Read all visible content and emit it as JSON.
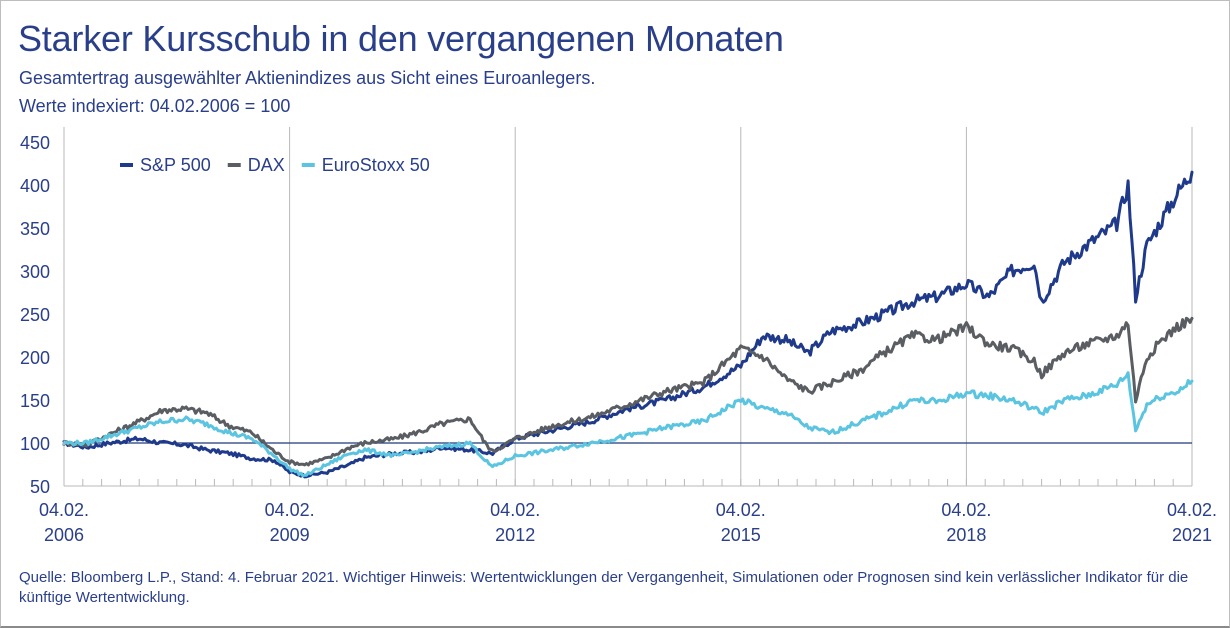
{
  "header": {
    "title": "Starker Kursschub in den vergangenen Monaten",
    "subtitle": "Gesamtertrag ausgewählter Aktienindizes aus Sicht eines Euroanlegers.",
    "note": "Werte indexiert: 04.02.2006 = 100"
  },
  "footer": {
    "source": "Quelle: Bloomberg L.P., Stand: 4. Februar 2021. Wichtiger Hinweis: Wertentwicklungen der Vergangenheit, Simulationen oder Prognosen sind kein verlässlicher Indikator für die künftige Wertentwicklung."
  },
  "colors": {
    "text": "#2a3f8a",
    "grid": "#b8b8b8",
    "baseline": "#1f3a7a"
  },
  "chart_data": {
    "type": "line",
    "title": "Starker Kursschub in den vergangenen Monaten",
    "subtitle": "Gesamtertrag ausgewählter Aktienindizes aus Sicht eines Euroanlegers.",
    "xlabel": "",
    "ylabel": "",
    "x_ticks": [
      {
        "x": 2006.0,
        "line1": "04.02.",
        "line2": "2006"
      },
      {
        "x": 2009.0,
        "line1": "04.02.",
        "line2": "2009"
      },
      {
        "x": 2012.0,
        "line1": "04.02.",
        "line2": "2012"
      },
      {
        "x": 2015.0,
        "line1": "04.02.",
        "line2": "2015"
      },
      {
        "x": 2018.0,
        "line1": "04.02.",
        "line2": "2018"
      },
      {
        "x": 2021.0,
        "line1": "04.02.",
        "line2": "2021"
      }
    ],
    "xlim": [
      2006.0,
      2021.0
    ],
    "ylim": [
      50,
      450
    ],
    "y_ticks": [
      50,
      100,
      150,
      200,
      250,
      300,
      350,
      400,
      450
    ],
    "grid": "vertical at year ticks",
    "reference_line": 100,
    "legend_position": "top-left",
    "series": [
      {
        "name": "S&P 500",
        "color": "#1f3a8a",
        "x": [
          2006.0,
          2006.3,
          2006.6,
          2007.0,
          2007.3,
          2007.6,
          2007.9,
          2008.2,
          2008.5,
          2008.8,
          2009.0,
          2009.2,
          2009.5,
          2009.8,
          2010.0,
          2010.4,
          2010.8,
          2011.0,
          2011.4,
          2011.7,
          2012.0,
          2012.5,
          2013.0,
          2013.5,
          2014.0,
          2014.5,
          2015.0,
          2015.3,
          2015.6,
          2015.9,
          2016.2,
          2016.6,
          2016.9,
          2017.3,
          2017.6,
          2018.0,
          2018.3,
          2018.6,
          2018.9,
          2019.0,
          2019.3,
          2019.6,
          2020.0,
          2020.15,
          2020.25,
          2020.4,
          2020.6,
          2020.8,
          2021.0
        ],
        "values": [
          100,
          95,
          100,
          105,
          100,
          98,
          92,
          88,
          82,
          80,
          66,
          62,
          66,
          75,
          83,
          88,
          90,
          95,
          92,
          88,
          105,
          115,
          125,
          140,
          150,
          165,
          190,
          225,
          220,
          205,
          230,
          240,
          250,
          265,
          270,
          285,
          270,
          300,
          310,
          265,
          310,
          330,
          355,
          400,
          270,
          330,
          360,
          390,
          415
        ]
      },
      {
        "name": "DAX",
        "color": "#5a5e63",
        "x": [
          2006.0,
          2006.3,
          2006.6,
          2007.0,
          2007.3,
          2007.6,
          2007.9,
          2008.2,
          2008.5,
          2008.8,
          2009.0,
          2009.2,
          2009.5,
          2009.8,
          2010.0,
          2010.4,
          2010.8,
          2011.0,
          2011.4,
          2011.6,
          2011.7,
          2012.0,
          2012.5,
          2013.0,
          2013.5,
          2014.0,
          2014.5,
          2015.0,
          2015.3,
          2015.6,
          2015.9,
          2016.2,
          2016.6,
          2016.9,
          2017.3,
          2017.6,
          2018.0,
          2018.3,
          2018.6,
          2018.9,
          2019.0,
          2019.3,
          2019.6,
          2020.0,
          2020.15,
          2020.25,
          2020.4,
          2020.6,
          2020.8,
          2021.0
        ],
        "values": [
          100,
          98,
          110,
          125,
          138,
          140,
          135,
          120,
          112,
          90,
          78,
          75,
          82,
          95,
          100,
          105,
          115,
          122,
          128,
          100,
          90,
          105,
          120,
          130,
          145,
          160,
          170,
          210,
          200,
          175,
          160,
          170,
          185,
          205,
          225,
          220,
          235,
          215,
          210,
          195,
          180,
          205,
          215,
          225,
          240,
          150,
          200,
          220,
          235,
          245
        ]
      },
      {
        "name": "EuroStoxx 50",
        "color": "#5bc4e0",
        "x": [
          2006.0,
          2006.3,
          2006.6,
          2007.0,
          2007.3,
          2007.6,
          2007.9,
          2008.2,
          2008.5,
          2008.8,
          2009.0,
          2009.2,
          2009.5,
          2009.8,
          2010.0,
          2010.4,
          2010.8,
          2011.0,
          2011.4,
          2011.6,
          2011.7,
          2012.0,
          2012.5,
          2013.0,
          2013.5,
          2014.0,
          2014.5,
          2015.0,
          2015.3,
          2015.6,
          2015.9,
          2016.2,
          2016.6,
          2016.9,
          2017.3,
          2017.6,
          2018.0,
          2018.3,
          2018.6,
          2018.9,
          2019.0,
          2019.3,
          2019.6,
          2020.0,
          2020.15,
          2020.25,
          2020.4,
          2020.6,
          2020.8,
          2021.0
        ],
        "values": [
          100,
          100,
          108,
          118,
          125,
          128,
          122,
          112,
          105,
          85,
          70,
          62,
          75,
          88,
          92,
          85,
          92,
          95,
          100,
          80,
          72,
          85,
          92,
          100,
          108,
          118,
          125,
          150,
          140,
          135,
          118,
          112,
          125,
          135,
          150,
          148,
          158,
          155,
          150,
          140,
          135,
          150,
          155,
          168,
          180,
          115,
          145,
          155,
          160,
          172
        ]
      }
    ]
  }
}
